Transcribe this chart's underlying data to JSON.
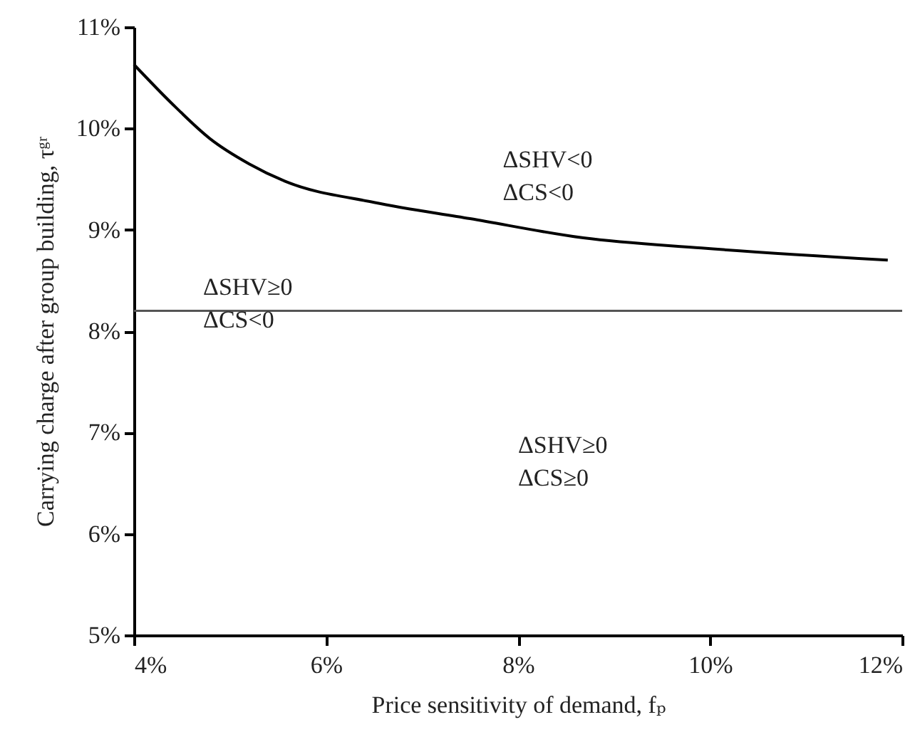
{
  "chart_data": {
    "type": "line",
    "xlabel": "Price sensitivity of demand, fₚ",
    "ylabel": "Carrying charge after group building, τᵍʳ",
    "series": [
      {
        "color": "#000000",
        "x": [
          4,
          4.39,
          4.79,
          5.2,
          5.57,
          6.5,
          7.5,
          8.68,
          9.91,
          11.85
        ],
        "values": [
          10.63,
          10.25,
          9.9,
          9.65,
          9.48,
          9.27,
          9.11,
          8.92,
          8.82,
          8.7
        ]
      }
    ],
    "xlim": [
      4,
      12
    ],
    "ylim": [
      5,
      11
    ],
    "xticks": [
      {
        "value": 4,
        "label": "4%"
      },
      {
        "value": 6,
        "label": "6%"
      },
      {
        "value": 8,
        "label": "8%"
      },
      {
        "value": 10,
        "label": "10%"
      },
      {
        "value": 12,
        "label": "12%"
      }
    ],
    "yticks": [
      {
        "value": 5,
        "label": "5%"
      },
      {
        "value": 6,
        "label": "6%"
      },
      {
        "value": 7,
        "label": "7%"
      },
      {
        "value": 8,
        "label": "8%"
      },
      {
        "value": 9,
        "label": "9%"
      },
      {
        "value": 10,
        "label": "10%"
      },
      {
        "value": 11,
        "label": "11%"
      }
    ],
    "ref_lines": [
      {
        "axis": "y",
        "value": 8.2,
        "color": "#555555"
      }
    ],
    "annotations": [
      "ΔSHV<0\nΔCS<0",
      "ΔSHV≥0\nΔCS<0",
      "ΔSHV≥0\nΔCS≥0"
    ],
    "grid": false,
    "marker": "none",
    "line_style": "solid"
  }
}
